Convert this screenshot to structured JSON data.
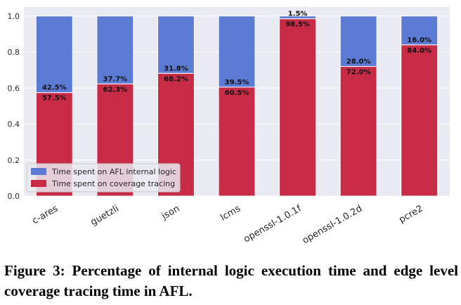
{
  "chart_data": {
    "type": "bar",
    "stacked": true,
    "categories": [
      "c-ares",
      "guetzli",
      "json",
      "lcms",
      "openssl-1.0.1f",
      "openssl-1.0.2d",
      "pcre2"
    ],
    "series": [
      {
        "name": "Time spent on coverage tracing",
        "values": [
          0.575,
          0.623,
          0.682,
          0.605,
          0.985,
          0.72,
          0.84
        ],
        "labels": [
          "57.5%",
          "62.3%",
          "68.2%",
          "60.5%",
          "98.5%",
          "72.0%",
          "84.0%"
        ],
        "color": "#c72b45"
      },
      {
        "name": "Time spent on AFL internal logic",
        "values": [
          0.425,
          0.377,
          0.318,
          0.395,
          0.015,
          0.28,
          0.16
        ],
        "labels": [
          "42.5%",
          "37.7%",
          "31.8%",
          "39.5%",
          "1.5%",
          "28.0%",
          "16.0%"
        ],
        "color": "#5c7bd4"
      }
    ],
    "yticks": [
      "0.0",
      "0.2",
      "0.4",
      "0.6",
      "0.8",
      "1.0"
    ],
    "ylim": [
      0,
      1.05
    ],
    "grid": true,
    "legend_position": "lower-left",
    "background": "#eaeaf2"
  },
  "caption": "Figure 3: Percentage of internal logic execution time and edge level coverage tracing time in AFL."
}
